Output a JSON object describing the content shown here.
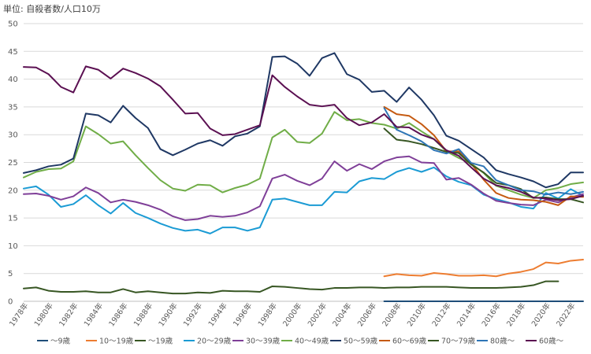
{
  "chart_data": {
    "type": "line",
    "unit_label": "単位: 自殺者数/人口10万",
    "x_tick_labels": [
      "1978年",
      "1980年",
      "1982年",
      "1984年",
      "1986年",
      "1988年",
      "1990年",
      "1992年",
      "1994年",
      "1996年",
      "1998年",
      "2000年",
      "2002年",
      "2004年",
      "2006年",
      "2008年",
      "2010年",
      "2012年",
      "2014年",
      "2016年",
      "2018年",
      "2020年",
      "2022年"
    ],
    "x": [
      1978,
      1979,
      1980,
      1981,
      1982,
      1983,
      1984,
      1985,
      1986,
      1987,
      1988,
      1989,
      1990,
      1991,
      1992,
      1993,
      1994,
      1995,
      1996,
      1997,
      1998,
      1999,
      2000,
      2001,
      2002,
      2003,
      2004,
      2005,
      2006,
      2007,
      2008,
      2009,
      2010,
      2011,
      2012,
      2013,
      2014,
      2015,
      2016,
      2017,
      2018,
      2019,
      2020,
      2021,
      2022,
      2023
    ],
    "ylim": [
      0,
      50
    ],
    "y_ticks": [
      0,
      5,
      10,
      15,
      20,
      25,
      30,
      35,
      40,
      45,
      50
    ],
    "grid": true,
    "legend_position": "bottom",
    "series": [
      {
        "name": "～9歳",
        "color": "#1f4e79",
        "values": [
          null,
          null,
          null,
          null,
          null,
          null,
          null,
          null,
          null,
          null,
          null,
          null,
          null,
          null,
          null,
          null,
          null,
          null,
          null,
          null,
          null,
          null,
          null,
          null,
          null,
          null,
          null,
          null,
          null,
          0,
          0,
          0,
          0,
          0,
          0,
          0,
          0,
          0,
          0,
          0,
          0,
          0,
          0,
          0,
          0,
          0
        ]
      },
      {
        "name": "10～19歳",
        "color": "#ed7d31",
        "values": [
          null,
          null,
          null,
          null,
          null,
          null,
          null,
          null,
          null,
          null,
          null,
          null,
          null,
          null,
          null,
          null,
          null,
          null,
          null,
          null,
          null,
          null,
          null,
          null,
          null,
          null,
          null,
          null,
          null,
          4.5,
          4.9,
          4.7,
          4.6,
          5.1,
          4.9,
          4.6,
          4.6,
          4.7,
          4.5,
          5.0,
          5.3,
          5.8,
          7.0,
          6.8,
          7.3,
          7.5
        ]
      },
      {
        "name": "～19歳",
        "color": "#375623",
        "values": [
          2.3,
          2.5,
          1.9,
          1.7,
          1.7,
          1.8,
          1.6,
          1.6,
          2.2,
          1.6,
          1.8,
          1.6,
          1.4,
          1.4,
          1.6,
          1.5,
          1.9,
          1.8,
          1.8,
          1.7,
          2.7,
          2.6,
          2.4,
          2.2,
          2.1,
          2.4,
          2.4,
          2.5,
          2.5,
          2.4,
          2.5,
          2.5,
          2.6,
          2.6,
          2.6,
          2.5,
          2.4,
          2.4,
          2.4,
          2.5,
          2.6,
          2.9,
          3.6,
          3.6,
          null,
          null
        ]
      },
      {
        "name": "20～29歳",
        "color": "#1b9bd4",
        "values": [
          20.3,
          20.7,
          19.2,
          17.0,
          17.5,
          19.1,
          17.3,
          15.8,
          17.7,
          15.9,
          15.0,
          14.0,
          13.2,
          12.7,
          12.9,
          12.2,
          13.3,
          13.3,
          12.7,
          13.3,
          18.3,
          18.5,
          17.9,
          17.3,
          17.3,
          19.7,
          19.6,
          21.6,
          22.2,
          22.0,
          23.3,
          24.0,
          23.3,
          24.1,
          22.5,
          21.5,
          20.9,
          19.2,
          18.4,
          17.8,
          17.0,
          16.7,
          19.5,
          18.5,
          20.2,
          19.0
        ]
      },
      {
        "name": "30～39歳",
        "color": "#7f3f98",
        "values": [
          19.3,
          19.4,
          19.0,
          18.3,
          18.9,
          20.5,
          19.5,
          17.8,
          18.3,
          17.9,
          17.3,
          16.5,
          15.3,
          14.6,
          14.8,
          15.4,
          15.2,
          15.4,
          16.0,
          17.1,
          22.1,
          22.8,
          21.7,
          20.9,
          22.1,
          25.2,
          23.5,
          24.7,
          23.8,
          25.2,
          25.9,
          26.1,
          25.0,
          24.9,
          21.9,
          22.2,
          21.0,
          19.4,
          18.1,
          17.7,
          17.4,
          17.3,
          18.3,
          17.8,
          18.7,
          19.3
        ]
      },
      {
        "name": "40～49歳",
        "color": "#70ad47",
        "values": [
          22.3,
          23.3,
          23.8,
          23.9,
          25.2,
          31.5,
          30.1,
          28.4,
          28.8,
          26.3,
          24.0,
          21.8,
          20.3,
          19.9,
          21.0,
          20.9,
          19.6,
          20.4,
          21.0,
          22.1,
          29.5,
          30.9,
          28.7,
          28.5,
          30.2,
          34.1,
          32.6,
          32.8,
          32.1,
          31.8,
          31.1,
          32.1,
          30.6,
          29.2,
          27.0,
          25.8,
          24.8,
          23.1,
          20.8,
          20.0,
          19.2,
          18.6,
          20.0,
          20.4,
          21.1,
          21.4
        ]
      },
      {
        "name": "50～59歳",
        "color": "#1f3864",
        "values": [
          23.1,
          23.6,
          24.3,
          24.6,
          25.7,
          33.8,
          33.5,
          32.2,
          35.2,
          33.0,
          31.2,
          27.4,
          26.3,
          27.3,
          28.4,
          29.0,
          28.0,
          29.7,
          30.2,
          31.5,
          44.0,
          44.1,
          42.8,
          40.6,
          43.8,
          44.7,
          40.9,
          39.9,
          37.7,
          37.9,
          35.9,
          38.5,
          36.3,
          33.5,
          29.8,
          28.9,
          27.4,
          25.9,
          23.6,
          22.9,
          22.3,
          21.6,
          20.5,
          21.1,
          23.2,
          23.2
        ]
      },
      {
        "name": "60～69歳",
        "color": "#c55a11",
        "values": [
          null,
          null,
          null,
          null,
          null,
          null,
          null,
          null,
          null,
          null,
          null,
          null,
          null,
          null,
          null,
          null,
          null,
          null,
          null,
          null,
          null,
          null,
          null,
          null,
          null,
          null,
          null,
          null,
          null,
          35.0,
          33.7,
          33.4,
          31.9,
          29.9,
          27.0,
          27.0,
          24.8,
          21.9,
          19.5,
          18.6,
          18.3,
          18.2,
          17.9,
          17.3,
          18.9,
          18.8
        ]
      },
      {
        "name": "70～79歳",
        "color": "#375623",
        "values": [
          null,
          null,
          null,
          null,
          null,
          null,
          null,
          null,
          null,
          null,
          null,
          null,
          null,
          null,
          null,
          null,
          null,
          null,
          null,
          null,
          null,
          null,
          null,
          null,
          null,
          null,
          null,
          null,
          null,
          31.1,
          29.1,
          28.8,
          28.3,
          27.6,
          26.9,
          26.7,
          24.6,
          23.2,
          21.3,
          20.9,
          20.2,
          18.6,
          18.7,
          18.4,
          18.4,
          17.8
        ]
      },
      {
        "name": "80歳～",
        "color": "#2e75b6",
        "values": [
          null,
          null,
          null,
          null,
          null,
          null,
          null,
          null,
          null,
          null,
          null,
          null,
          null,
          null,
          null,
          null,
          null,
          null,
          null,
          null,
          null,
          null,
          null,
          null,
          null,
          null,
          null,
          null,
          null,
          34.8,
          30.9,
          29.9,
          28.8,
          27.2,
          26.6,
          27.4,
          24.9,
          24.3,
          21.8,
          20.9,
          20.0,
          19.8,
          19.2,
          19.6,
          19.3,
          19.7
        ]
      },
      {
        "name": "60歳～",
        "color": "#5b1052",
        "values": [
          42.2,
          42.1,
          40.9,
          38.6,
          37.6,
          42.3,
          41.7,
          40.1,
          41.9,
          41.1,
          40.1,
          38.7,
          36.3,
          33.8,
          33.9,
          31.1,
          29.9,
          30.1,
          30.9,
          31.7,
          40.7,
          38.6,
          36.9,
          35.4,
          35.1,
          35.4,
          33.0,
          31.7,
          32.2,
          33.7,
          31.4,
          31.3,
          30.0,
          29.2,
          27.2,
          26.2,
          24.1,
          22.1,
          20.9,
          20.4,
          19.7,
          18.7,
          18.5,
          18.2,
          18.4,
          19.0
        ]
      }
    ]
  }
}
